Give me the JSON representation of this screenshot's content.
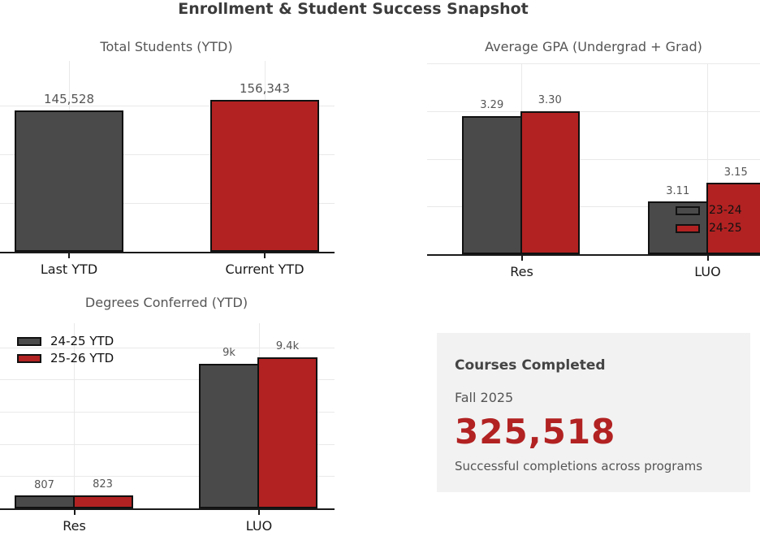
{
  "title": "Enrollment & Student Success Snapshot",
  "colors": {
    "bar_gray": "#4a4a4a",
    "accent_red": "#b22222",
    "axis": "#1a1a1a",
    "grid": "#e9e9e9",
    "card_background": "#f2f2f2"
  },
  "chart_data": [
    {
      "id": "total-students",
      "type": "bar",
      "title": "Total Students (YTD)",
      "categories": [
        "Last YTD",
        "Current YTD"
      ],
      "series": [
        {
          "name": "",
          "values": [
            145528,
            156343
          ],
          "labels": [
            "145,528",
            "156,343"
          ],
          "colors": [
            "#4a4a4a",
            "#b22222"
          ]
        }
      ],
      "ylim": [
        0,
        196000
      ],
      "grid_step": 50000,
      "grid": true,
      "legend": null
    },
    {
      "id": "avg-gpa",
      "type": "bar",
      "title": "Average GPA (Undergrad + Grad)",
      "categories": [
        "Res",
        "LUO"
      ],
      "series": [
        {
          "name": "23-24",
          "color": "#4a4a4a",
          "values": [
            3.29,
            3.11
          ],
          "labels": [
            "3.29",
            "3.11"
          ]
        },
        {
          "name": "24-25",
          "color": "#b22222",
          "values": [
            3.3,
            3.15
          ],
          "labels": [
            "3.30",
            "3.15"
          ]
        }
      ],
      "ylim": [
        3.0,
        3.4
      ],
      "grid_step": 0.1,
      "grid": true,
      "legend": "inside-lower-right"
    },
    {
      "id": "degrees-conferred",
      "type": "bar",
      "title": "Degrees Conferred (YTD)",
      "categories": [
        "Res",
        "LUO"
      ],
      "series": [
        {
          "name": "24-25 YTD",
          "color": "#4a4a4a",
          "values": [
            807,
            9000
          ],
          "labels": [
            "807",
            "9k"
          ]
        },
        {
          "name": "25-26 YTD",
          "color": "#b22222",
          "values": [
            823,
            9400
          ],
          "labels": [
            "823",
            "9.4k"
          ]
        }
      ],
      "ylim": [
        0,
        11500
      ],
      "grid_step": 2000,
      "grid": true,
      "legend": "upper-left"
    }
  ],
  "card": {
    "title": "Courses Completed",
    "subtitle": "Fall 2025",
    "value": "325,518",
    "caption": "Successful completions across programs"
  }
}
